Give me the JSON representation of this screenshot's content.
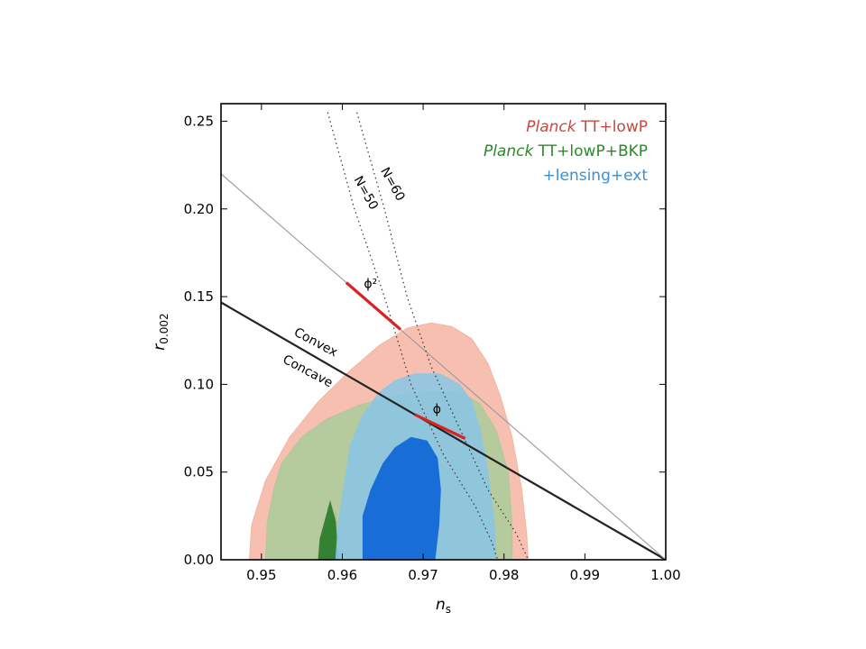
{
  "chart_data": {
    "type": "scatter",
    "title": "",
    "xlabel": "n",
    "xlabel_sub": "s",
    "ylabel": "r",
    "ylabel_sub": "0.002",
    "xlim": [
      0.945,
      1.0
    ],
    "ylim": [
      0.0,
      0.26
    ],
    "xticks": [
      0.95,
      0.96,
      0.97,
      0.98,
      0.99,
      1.0
    ],
    "xtick_labels": [
      "0.95",
      "0.96",
      "0.97",
      "0.98",
      "0.99",
      "1.00"
    ],
    "yticks": [
      0.0,
      0.05,
      0.1,
      0.15,
      0.2,
      0.25
    ],
    "ytick_labels": [
      "0.00",
      "0.05",
      "0.10",
      "0.15",
      "0.20",
      "0.25"
    ],
    "grid": false,
    "legend_position": "top-right",
    "legend": [
      {
        "italic": "Planck",
        "rest": " TT+lowP",
        "color": "#c8483f"
      },
      {
        "italic": "Planck",
        "rest": " TT+lowP+BKP",
        "color": "#2a8a2a"
      },
      {
        "italic": "",
        "rest": "+lensing+ext",
        "color": "#3a8fd6"
      }
    ],
    "series": [
      {
        "name": "Planck TT+lowP",
        "color_outer": "#f4b4a2",
        "color_inner": "#e0705e",
        "contour_95": [
          [
            0.9485,
            0.0
          ],
          [
            0.9488,
            0.02
          ],
          [
            0.9505,
            0.045
          ],
          [
            0.9535,
            0.07
          ],
          [
            0.957,
            0.09
          ],
          [
            0.961,
            0.108
          ],
          [
            0.9645,
            0.122
          ],
          [
            0.968,
            0.132
          ],
          [
            0.971,
            0.135
          ],
          [
            0.9735,
            0.133
          ],
          [
            0.976,
            0.126
          ],
          [
            0.978,
            0.112
          ],
          [
            0.9795,
            0.094
          ],
          [
            0.981,
            0.07
          ],
          [
            0.9822,
            0.04
          ],
          [
            0.9828,
            0.015
          ],
          [
            0.983,
            0.0
          ]
        ],
        "contour_68": [
          [
            0.9568,
            0.0
          ],
          [
            0.9572,
            0.012
          ],
          [
            0.9585,
            0.02
          ],
          [
            0.9592,
            0.028
          ],
          [
            0.9598,
            0.0
          ]
        ]
      },
      {
        "name": "Planck TT+lowP+BKP",
        "color_outer": "#a9cb9a",
        "color_inner": "#2e7d2e",
        "contour_95": [
          [
            0.9505,
            0.0
          ],
          [
            0.9507,
            0.02
          ],
          [
            0.9515,
            0.04
          ],
          [
            0.9525,
            0.055
          ],
          [
            0.955,
            0.07
          ],
          [
            0.958,
            0.08
          ],
          [
            0.962,
            0.088
          ],
          [
            0.966,
            0.093
          ],
          [
            0.9705,
            0.096
          ],
          [
            0.9745,
            0.096
          ],
          [
            0.977,
            0.089
          ],
          [
            0.979,
            0.074
          ],
          [
            0.9805,
            0.05
          ],
          [
            0.981,
            0.02
          ],
          [
            0.981,
            0.0
          ]
        ],
        "contour_68": [
          [
            0.957,
            0.0
          ],
          [
            0.9572,
            0.012
          ],
          [
            0.9578,
            0.022
          ],
          [
            0.9585,
            0.034
          ],
          [
            0.9592,
            0.022
          ],
          [
            0.9595,
            0.0
          ]
        ]
      },
      {
        "name": "+lensing+ext",
        "color_outer": "#88c6e8",
        "color_inner": "#1268d6",
        "contour_95": [
          [
            0.9592,
            0.0
          ],
          [
            0.9595,
            0.02
          ],
          [
            0.9605,
            0.05
          ],
          [
            0.961,
            0.065
          ],
          [
            0.9625,
            0.082
          ],
          [
            0.9645,
            0.095
          ],
          [
            0.9665,
            0.102
          ],
          [
            0.969,
            0.106
          ],
          [
            0.972,
            0.106
          ],
          [
            0.9745,
            0.1
          ],
          [
            0.976,
            0.09
          ],
          [
            0.977,
            0.075
          ],
          [
            0.978,
            0.05
          ],
          [
            0.9788,
            0.02
          ],
          [
            0.979,
            0.0
          ]
        ],
        "contour_68": [
          [
            0.9625,
            0.0
          ],
          [
            0.9625,
            0.025
          ],
          [
            0.9635,
            0.04
          ],
          [
            0.965,
            0.055
          ],
          [
            0.9665,
            0.064
          ],
          [
            0.9685,
            0.07
          ],
          [
            0.9705,
            0.068
          ],
          [
            0.9718,
            0.058
          ],
          [
            0.9722,
            0.04
          ],
          [
            0.972,
            0.02
          ],
          [
            0.9715,
            0.0
          ]
        ]
      }
    ],
    "lines": [
      {
        "name": "convex-concave boundary",
        "color": "#222222",
        "width": 2.2,
        "points": [
          [
            0.945,
            0.1467
          ],
          [
            1.0,
            0.0
          ]
        ]
      },
      {
        "name": "phi^2 line",
        "color": "#999999",
        "width": 1.1,
        "points": [
          [
            0.945,
            0.22
          ],
          [
            1.0,
            0.0
          ]
        ]
      },
      {
        "name": "N=50",
        "color": "#333333",
        "dashed": true,
        "points": [
          [
            0.9582,
            0.255
          ],
          [
            0.9615,
            0.2
          ],
          [
            0.9652,
            0.15
          ],
          [
            0.9685,
            0.1
          ],
          [
            0.9725,
            0.06
          ],
          [
            0.9765,
            0.03
          ],
          [
            0.9785,
            0.01
          ],
          [
            0.9792,
            0.0
          ]
        ]
      },
      {
        "name": "N=60",
        "color": "#333333",
        "dashed": true,
        "points": [
          [
            0.9618,
            0.255
          ],
          [
            0.9652,
            0.2
          ],
          [
            0.968,
            0.15
          ],
          [
            0.971,
            0.11
          ],
          [
            0.9745,
            0.075
          ],
          [
            0.978,
            0.04
          ],
          [
            0.9815,
            0.015
          ],
          [
            0.983,
            0.0
          ]
        ]
      }
    ],
    "segments": [
      {
        "name": "phi^2 predictions",
        "color": "#d92323",
        "points": [
          [
            0.9605,
            0.158
          ],
          [
            0.9672,
            0.1313
          ]
        ]
      },
      {
        "name": "phi predictions",
        "color": "#d92323",
        "points": [
          [
            0.969,
            0.0827
          ],
          [
            0.9752,
            0.0691
          ]
        ]
      }
    ],
    "annotations": [
      {
        "name": "N=50",
        "text": "N=50",
        "x": 0.9625,
        "y": 0.208,
        "angle": 61,
        "color": "#000000"
      },
      {
        "name": "N=60",
        "text": "N=60",
        "x": 0.9658,
        "y": 0.213,
        "angle": 61,
        "color": "#000000"
      },
      {
        "name": "Convex",
        "text": "Convex",
        "x": 0.9565,
        "y": 0.122,
        "angle": 28,
        "color": "#000000"
      },
      {
        "name": "Concave",
        "text": "Concave",
        "x": 0.9555,
        "y": 0.1055,
        "angle": 28,
        "color": "#000000"
      },
      {
        "name": "phi^2 label",
        "text": "ϕ²",
        "x": 0.9635,
        "y": 0.155,
        "angle": 0,
        "color": "#d92323"
      },
      {
        "name": "phi label",
        "text": "ϕ",
        "x": 0.9717,
        "y": 0.0835,
        "angle": 0,
        "color": "#d92323"
      }
    ]
  }
}
